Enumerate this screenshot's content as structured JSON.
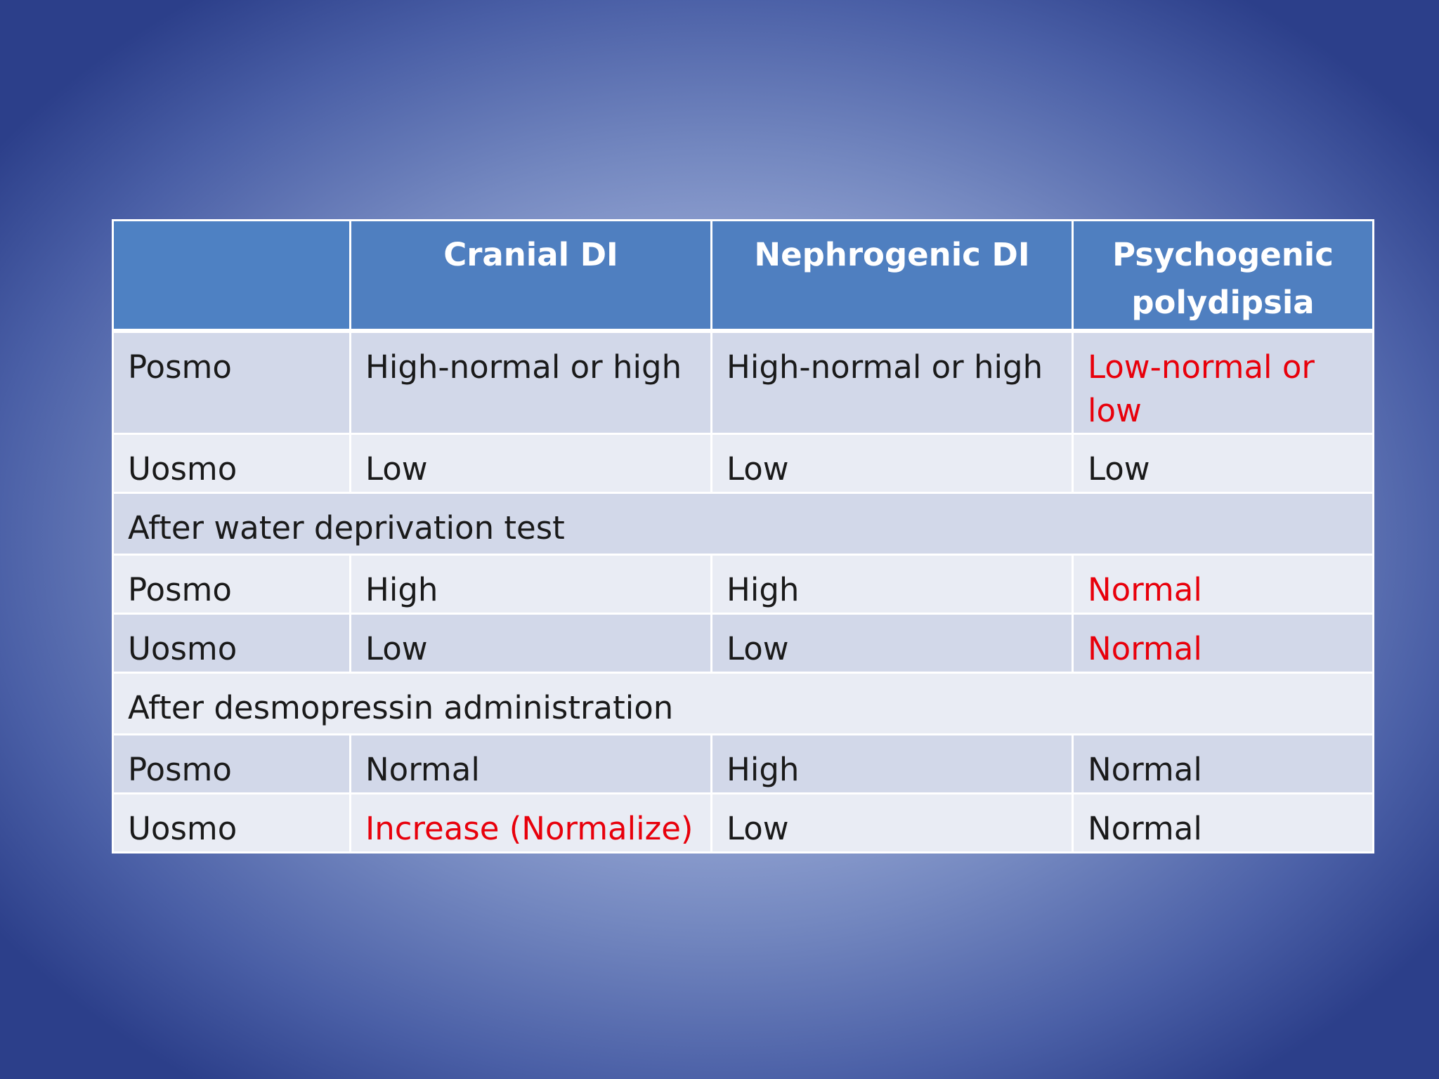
{
  "table": {
    "headers": [
      "",
      "Cranial DI",
      "Nephrogenic DI",
      "Psychogenic polydipsia"
    ],
    "rows": [
      {
        "type": "data",
        "label": "Posmo",
        "cells": [
          "High-normal or high",
          "High-normal or high",
          "Low-normal or low"
        ]
      },
      {
        "type": "data",
        "label": "Uosmo",
        "cells": [
          "Low",
          "Low",
          "Low"
        ]
      },
      {
        "type": "section",
        "label": "After water deprivation test"
      },
      {
        "type": "data",
        "label": "Posmo",
        "cells": [
          "High",
          "High",
          "Normal"
        ]
      },
      {
        "type": "data",
        "label": "Uosmo",
        "cells": [
          "Low",
          "Low",
          "Normal"
        ]
      },
      {
        "type": "section",
        "label": "After desmopressin administration"
      },
      {
        "type": "data",
        "label": "Posmo",
        "cells": [
          "Normal",
          "High",
          "Normal"
        ]
      },
      {
        "type": "data",
        "label": "Uosmo",
        "cells": [
          "Increase (Normalize)",
          "Low",
          "Normal"
        ]
      }
    ]
  },
  "colors": {
    "header_bg": "#4f7fc0",
    "row_dark": "#d2d8e9",
    "row_light": "#e9ecf4",
    "highlight_text": "#e8000b"
  }
}
